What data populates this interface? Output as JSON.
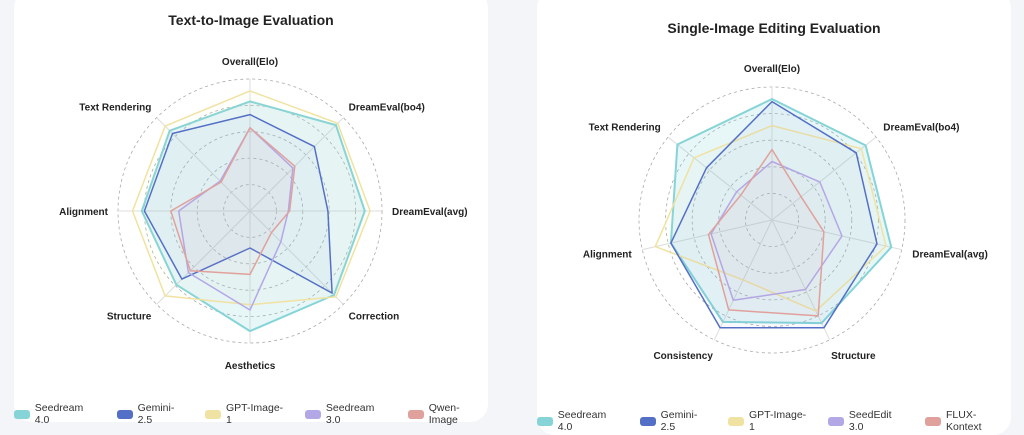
{
  "chart_data": [
    {
      "type": "radar",
      "title": "Text-to-Image Evaluation",
      "axes": [
        "Overall(Elo)",
        "DreamEval(bo4)",
        "DreamEval(avg)",
        "Correction",
        "Aesthetics",
        "Structure",
        "Alignment",
        "Text Rendering"
      ],
      "range": [
        0,
        1
      ],
      "rings": 5,
      "legend_position": "bottom",
      "series": [
        {
          "name": "Seedream 4.0",
          "color": "#86d4d8",
          "values": [
            0.83,
            0.92,
            0.87,
            0.9,
            0.91,
            0.79,
            0.82,
            0.86
          ]
        },
        {
          "name": "Gemini-2.5",
          "color": "#5470c6",
          "values": [
            0.73,
            0.69,
            0.59,
            0.88,
            0.28,
            0.73,
            0.8,
            0.83
          ]
        },
        {
          "name": "GPT-Image-1",
          "color": "#f0e2a2",
          "values": [
            0.91,
            0.94,
            0.91,
            0.92,
            0.71,
            0.91,
            0.89,
            0.91
          ]
        },
        {
          "name": "Seedream 3.0",
          "color": "#b3a7e6",
          "values": [
            0.63,
            0.46,
            0.29,
            0.33,
            0.75,
            0.66,
            0.54,
            0.32
          ]
        },
        {
          "name": "Qwen-Image",
          "color": "#e0a19c",
          "values": [
            0.63,
            0.48,
            0.3,
            0.23,
            0.48,
            0.64,
            0.6,
            0.31
          ]
        }
      ]
    },
    {
      "type": "radar",
      "title": "Single-Image Editing Evaluation",
      "axes": [
        "Overall(Elo)",
        "DreamEval(bo4)",
        "DreamEval(avg)",
        "Structure",
        "Consistency",
        "Alignment",
        "Text Rendering"
      ],
      "range": [
        0,
        1
      ],
      "rings": 5,
      "legend_position": "bottom",
      "series": [
        {
          "name": "Seedream 4.0",
          "color": "#86d4d8",
          "values": [
            0.91,
            0.9,
            0.92,
            0.86,
            0.85,
            0.78,
            0.91
          ]
        },
        {
          "name": "Gemini-2.5",
          "color": "#5470c6",
          "values": [
            0.89,
            0.81,
            0.81,
            0.9,
            0.9,
            0.78,
            0.63
          ]
        },
        {
          "name": "GPT-Image-1",
          "color": "#f0e2a2",
          "values": [
            0.71,
            0.86,
            0.88,
            0.76,
            0.5,
            0.9,
            0.75
          ]
        },
        {
          "name": "SeedEdit 3.0",
          "color": "#b3a7e6",
          "values": [
            0.44,
            0.46,
            0.54,
            0.58,
            0.67,
            0.47,
            0.34
          ]
        },
        {
          "name": "FLUX-Kontext",
          "color": "#e0a19c",
          "values": [
            0.53,
            0.28,
            0.4,
            0.8,
            0.75,
            0.49,
            0.3
          ]
        }
      ]
    }
  ]
}
